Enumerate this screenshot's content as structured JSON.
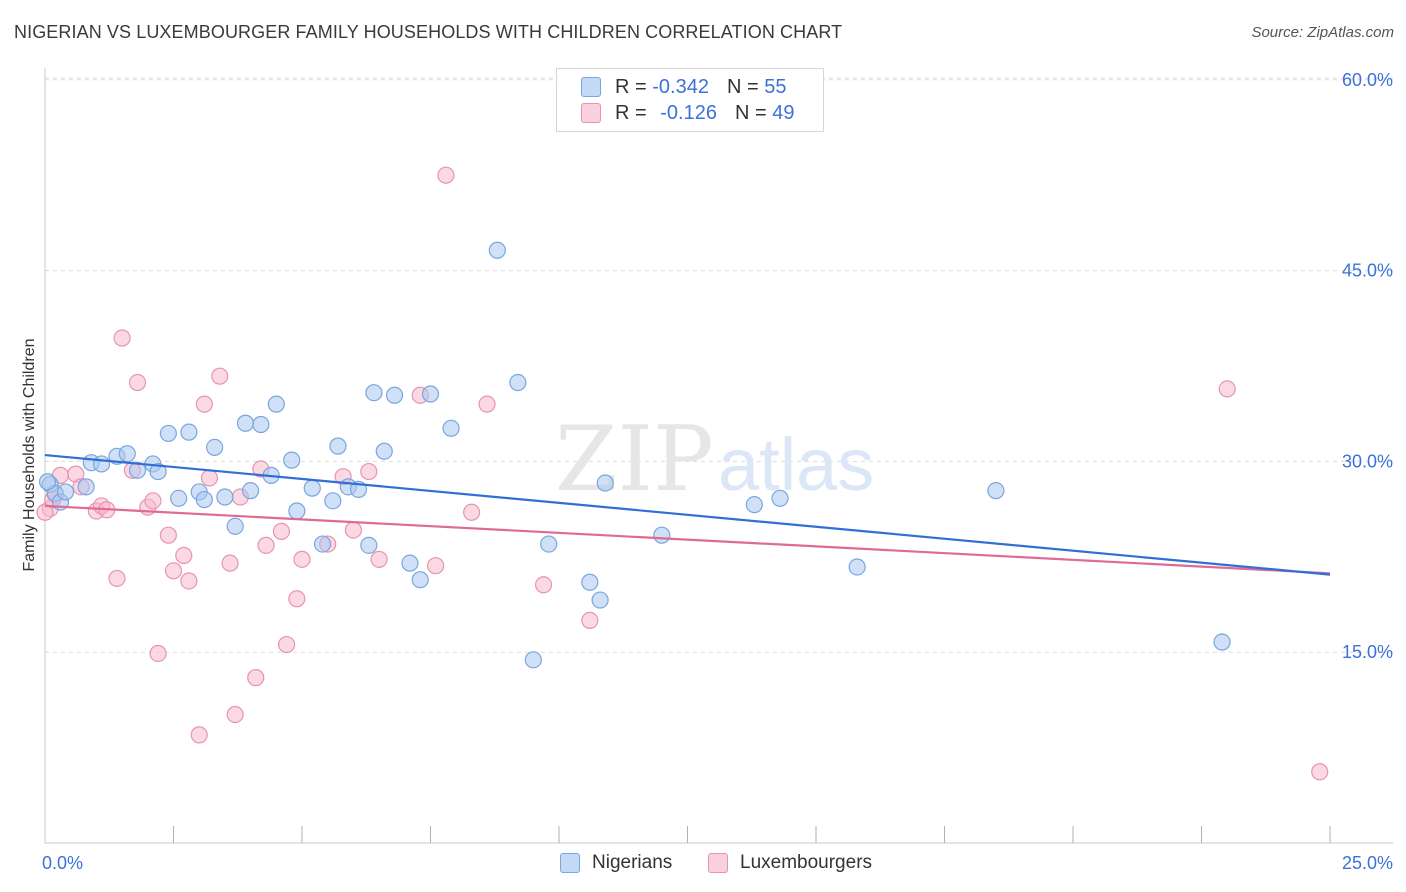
{
  "title": "NIGERIAN VS LUXEMBOURGER FAMILY HOUSEHOLDS WITH CHILDREN CORRELATION CHART",
  "source": "Source: ZipAtlas.com",
  "watermark": {
    "zip": "ZIP",
    "atlas": "atlas"
  },
  "legend": {
    "blue": {
      "r_label": "R = ",
      "r_value": "-0.342",
      "n_label": "N = ",
      "n_value": "55"
    },
    "pink": {
      "r_label": "R = ",
      "r_value": "-0.126",
      "n_label": "N = ",
      "n_value": "49"
    }
  },
  "colors": {
    "blue_fill": "#a9c8f0",
    "blue_stroke": "#7aa5e0",
    "blue_line": "#2f6fd6",
    "pink_fill": "#f6b9cc",
    "pink_stroke": "#e993b0",
    "pink_line": "#e06a96",
    "tick_text": "#3b72d9",
    "grid": "#dcdcdc"
  },
  "chart_data": {
    "type": "scatter",
    "title": "NIGERIAN VS LUXEMBOURGER FAMILY HOUSEHOLDS WITH CHILDREN CORRELATION CHART",
    "xlabel": "",
    "ylabel": "Family Households with Children",
    "xlim": [
      0,
      25
    ],
    "ylim": [
      0,
      62.5
    ],
    "x_tick_labels": [
      "0.0%",
      "25.0%"
    ],
    "y_ticks": [
      15,
      30,
      45,
      60
    ],
    "y_tick_labels": [
      "15.0%",
      "30.0%",
      "45.0%",
      "60.0%"
    ],
    "series": [
      {
        "name": "Nigerians",
        "trend": [
          [
            0,
            30.5
          ],
          [
            25,
            21.1
          ]
        ],
        "points": [
          [
            0.1,
            28.2
          ],
          [
            0.2,
            27.5
          ],
          [
            0.3,
            26.8
          ],
          [
            0.4,
            27.6
          ],
          [
            0.8,
            28.0
          ],
          [
            0.9,
            29.9
          ],
          [
            1.1,
            29.8
          ],
          [
            1.4,
            30.4
          ],
          [
            1.6,
            30.6
          ],
          [
            1.8,
            29.3
          ],
          [
            2.1,
            29.8
          ],
          [
            2.2,
            29.2
          ],
          [
            2.4,
            32.2
          ],
          [
            2.6,
            27.1
          ],
          [
            2.8,
            32.3
          ],
          [
            3.0,
            27.6
          ],
          [
            3.1,
            27.0
          ],
          [
            3.3,
            31.1
          ],
          [
            3.5,
            27.2
          ],
          [
            3.7,
            24.9
          ],
          [
            3.9,
            33.0
          ],
          [
            4.0,
            27.7
          ],
          [
            4.2,
            32.9
          ],
          [
            4.4,
            28.9
          ],
          [
            4.5,
            34.5
          ],
          [
            4.8,
            30.1
          ],
          [
            4.9,
            26.1
          ],
          [
            5.2,
            27.9
          ],
          [
            5.4,
            23.5
          ],
          [
            5.6,
            26.9
          ],
          [
            5.7,
            31.2
          ],
          [
            5.9,
            28.0
          ],
          [
            6.1,
            27.8
          ],
          [
            6.3,
            23.4
          ],
          [
            6.4,
            35.4
          ],
          [
            6.6,
            30.8
          ],
          [
            6.8,
            35.2
          ],
          [
            7.1,
            22.0
          ],
          [
            7.3,
            20.7
          ],
          [
            7.5,
            35.3
          ],
          [
            7.9,
            32.6
          ],
          [
            8.8,
            46.6
          ],
          [
            9.2,
            36.2
          ],
          [
            9.5,
            14.4
          ],
          [
            9.8,
            23.5
          ],
          [
            10.6,
            20.5
          ],
          [
            10.8,
            19.1
          ],
          [
            10.9,
            28.3
          ],
          [
            12.0,
            24.2
          ],
          [
            13.8,
            26.6
          ],
          [
            14.3,
            27.1
          ],
          [
            15.8,
            21.7
          ],
          [
            18.5,
            27.7
          ],
          [
            22.9,
            15.8
          ],
          [
            0.05,
            28.4
          ]
        ]
      },
      {
        "name": "Luxembourgers",
        "trend": [
          [
            0,
            26.5
          ],
          [
            25,
            21.2
          ]
        ],
        "points": [
          [
            0.1,
            26.3
          ],
          [
            0.2,
            27.4
          ],
          [
            0.3,
            28.9
          ],
          [
            0.6,
            29.0
          ],
          [
            0.7,
            28.0
          ],
          [
            1.0,
            26.1
          ],
          [
            1.1,
            26.5
          ],
          [
            1.2,
            26.2
          ],
          [
            1.4,
            20.8
          ],
          [
            1.5,
            39.7
          ],
          [
            1.7,
            29.3
          ],
          [
            1.8,
            36.2
          ],
          [
            2.0,
            26.4
          ],
          [
            2.1,
            26.9
          ],
          [
            2.2,
            14.9
          ],
          [
            2.4,
            24.2
          ],
          [
            2.5,
            21.4
          ],
          [
            2.7,
            22.6
          ],
          [
            2.8,
            20.6
          ],
          [
            3.0,
            8.5
          ],
          [
            3.1,
            34.5
          ],
          [
            3.2,
            28.7
          ],
          [
            3.4,
            36.7
          ],
          [
            3.6,
            22.0
          ],
          [
            3.7,
            10.1
          ],
          [
            3.8,
            27.2
          ],
          [
            4.1,
            13.0
          ],
          [
            4.2,
            29.4
          ],
          [
            4.3,
            23.4
          ],
          [
            4.6,
            24.5
          ],
          [
            4.7,
            15.6
          ],
          [
            4.9,
            19.2
          ],
          [
            5.0,
            22.3
          ],
          [
            5.5,
            23.5
          ],
          [
            5.8,
            28.8
          ],
          [
            6.0,
            24.6
          ],
          [
            6.3,
            29.2
          ],
          [
            6.5,
            22.3
          ],
          [
            7.3,
            35.2
          ],
          [
            7.6,
            21.8
          ],
          [
            7.8,
            52.5
          ],
          [
            8.3,
            26.0
          ],
          [
            8.6,
            34.5
          ],
          [
            9.7,
            20.3
          ],
          [
            10.6,
            17.5
          ],
          [
            23.0,
            35.7
          ],
          [
            24.8,
            5.6
          ],
          [
            0.0,
            26.0
          ],
          [
            0.15,
            27.0
          ]
        ]
      }
    ]
  },
  "bottom_legend": [
    "Nigerians",
    "Luxembourgers"
  ]
}
